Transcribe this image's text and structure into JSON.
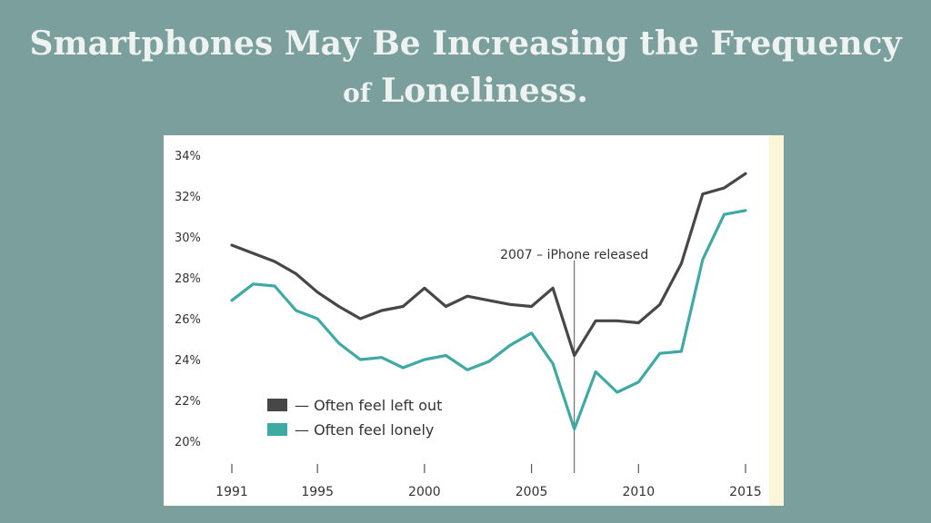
{
  "slide": {
    "title_line1": "Smartphones May Be Increasing the Frequency",
    "title_line2_prefix": "of",
    "title_line2_main": "Loneliness."
  },
  "chart_data": {
    "type": "line",
    "title": "",
    "xlabel": "",
    "ylabel": "",
    "x": [
      1991,
      1992,
      1993,
      1994,
      1995,
      1996,
      1997,
      1998,
      1999,
      2000,
      2001,
      2002,
      2003,
      2004,
      2005,
      2006,
      2007,
      2008,
      2009,
      2010,
      2011,
      2012,
      2013,
      2014,
      2015
    ],
    "xlim": [
      1991,
      2015
    ],
    "ylim": [
      20,
      34
    ],
    "x_ticks": [
      1991,
      1995,
      2000,
      2005,
      2010,
      2015
    ],
    "y_ticks": [
      20,
      22,
      24,
      26,
      28,
      30,
      32,
      34
    ],
    "y_tick_labels": [
      "20%",
      "22%",
      "24%",
      "26%",
      "28%",
      "30%",
      "32%",
      "34%"
    ],
    "series": [
      {
        "name": "— Often feel left out",
        "color": "#474747",
        "values": [
          29.6,
          29.2,
          28.8,
          28.2,
          27.3,
          26.6,
          26.0,
          26.4,
          26.6,
          27.5,
          26.6,
          27.1,
          26.9,
          26.7,
          26.6,
          27.5,
          24.2,
          25.9,
          25.9,
          25.8,
          26.7,
          28.7,
          32.1,
          32.4,
          33.1
        ]
      },
      {
        "name": "— Often feel lonely",
        "color": "#3fa9a4",
        "values": [
          26.9,
          27.7,
          27.6,
          26.4,
          26.0,
          24.8,
          24.0,
          24.1,
          23.6,
          24.0,
          24.2,
          23.5,
          23.9,
          24.7,
          25.3,
          23.8,
          20.6,
          23.4,
          22.4,
          22.9,
          24.3,
          24.4,
          28.9,
          31.1,
          31.3
        ]
      }
    ],
    "annotation": {
      "x": 2007,
      "text": "2007 – iPhone released"
    },
    "grid": false,
    "legend_position": "bottom-left"
  }
}
